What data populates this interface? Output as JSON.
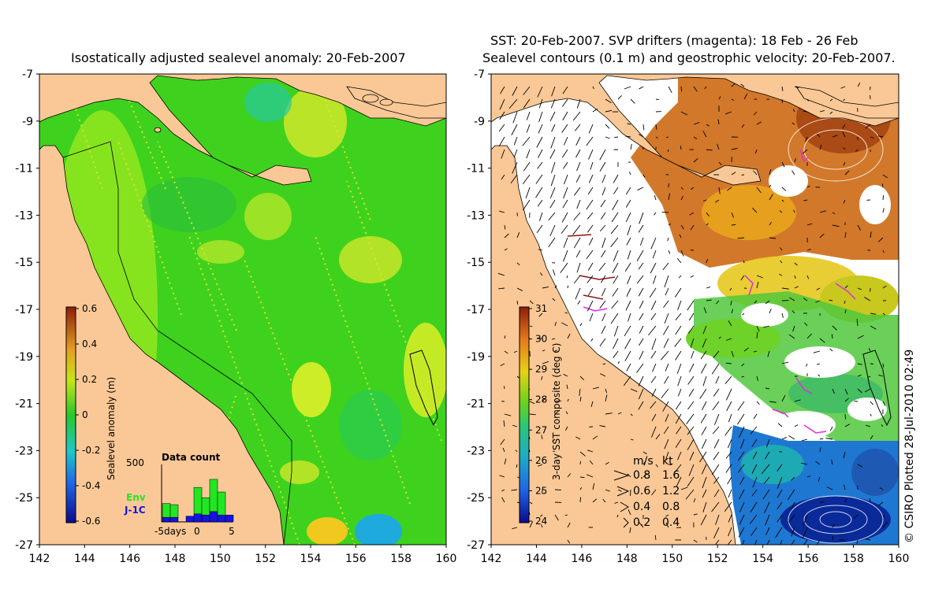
{
  "left_panel": {
    "title": "Isostatically adjusted sealevel anomaly: 20-Feb-2007",
    "colorbar": {
      "label": "Sealevel anomaly (m)",
      "ticks": [
        "0.6",
        "0.4",
        "0.2",
        "0",
        "-0.2",
        "-0.4",
        "-0.6"
      ]
    },
    "data_count": {
      "title": "Data count",
      "ymax": "500",
      "x_start": "-5days",
      "x_mid": "0",
      "x_end": "5",
      "legend": [
        {
          "label": "Env",
          "color": "#22e622"
        },
        {
          "label": "J-1C",
          "color": "#1414dc"
        }
      ],
      "env_counts": [
        120,
        110,
        0,
        0,
        230,
        150,
        280,
        200,
        0
      ],
      "j1c_counts": [
        40,
        40,
        0,
        50,
        70,
        60,
        90,
        60,
        60
      ]
    }
  },
  "right_panel": {
    "title_line1": "SST: 20-Feb-2007. SVP drifters (magenta): 18 Feb - 26 Feb",
    "title_line2": "Sealevel contours (0.1 m) and geostrophic velocity: 20-Feb-2007.",
    "colorbar": {
      "label": "3-day SST composite (deg C)",
      "ticks": [
        "31",
        "30",
        "29",
        "28",
        "27",
        "26",
        "25",
        "24"
      ]
    },
    "velocity_legend": {
      "header_ms": "m/s",
      "header_kt": "kt",
      "rows": [
        {
          "ms": "0.8",
          "kt": "1.6"
        },
        {
          "ms": "0.6",
          "kt": "1.2"
        },
        {
          "ms": "0.4",
          "kt": "0.8"
        },
        {
          "ms": "0.2",
          "kt": "0.4"
        }
      ]
    },
    "credit": "© CSIRO Plotted 28-Jul-2010 02:49"
  },
  "axes": {
    "x_ticks": [
      "142",
      "144",
      "146",
      "148",
      "150",
      "152",
      "154",
      "156",
      "158",
      "160"
    ],
    "y_ticks": [
      "-7",
      "-9",
      "-11",
      "-13",
      "-15",
      "-17",
      "-19",
      "-21",
      "-23",
      "-25",
      "-27"
    ]
  },
  "colors": {
    "land": "#fac896",
    "ocean_green": "#3ed21e",
    "ocean_light": "#8ee61e",
    "sst_warm": "#d2641e",
    "sst_cool": "#1e78d2",
    "no_data": "#ffffff"
  }
}
